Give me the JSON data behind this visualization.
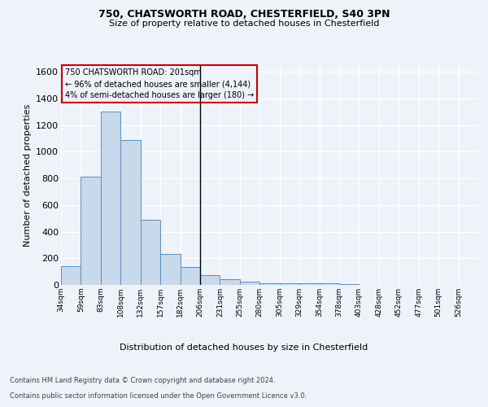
{
  "title1": "750, CHATSWORTH ROAD, CHESTERFIELD, S40 3PN",
  "title2": "Size of property relative to detached houses in Chesterfield",
  "xlabel": "Distribution of detached houses by size in Chesterfield",
  "ylabel": "Number of detached properties",
  "footnote1": "Contains HM Land Registry data © Crown copyright and database right 2024.",
  "footnote2": "Contains public sector information licensed under the Open Government Licence v3.0.",
  "annotation_line1": "750 CHATSWORTH ROAD: 201sqm",
  "annotation_line2": "← 96% of detached houses are smaller (4,144)",
  "annotation_line3": "4% of semi-detached houses are larger (180) →",
  "bar_values": [
    140,
    810,
    1300,
    1090,
    490,
    235,
    135,
    75,
    42,
    25,
    15,
    10,
    10,
    10,
    5,
    0,
    0,
    0,
    0,
    0
  ],
  "categories": [
    "34sqm",
    "59sqm",
    "83sqm",
    "108sqm",
    "132sqm",
    "157sqm",
    "182sqm",
    "206sqm",
    "231sqm",
    "255sqm",
    "280sqm",
    "305sqm",
    "329sqm",
    "354sqm",
    "378sqm",
    "403sqm",
    "428sqm",
    "452sqm",
    "477sqm",
    "501sqm",
    "526sqm"
  ],
  "bar_color": "#c8d9eb",
  "bar_edge_color": "#5a8fc0",
  "marker_line_color": "#000000",
  "background_color": "#eef2f9",
  "annotation_box_edge": "#cc0000",
  "ylim": [
    0,
    1650
  ],
  "yticks": [
    0,
    200,
    400,
    600,
    800,
    1000,
    1200,
    1400,
    1600
  ]
}
